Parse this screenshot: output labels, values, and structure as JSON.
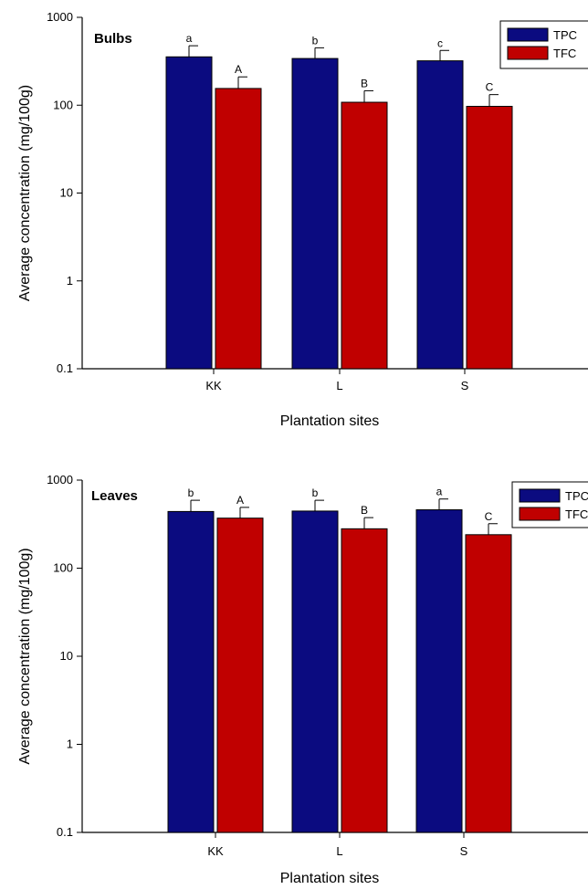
{
  "chart_data": [
    {
      "type": "bar",
      "title": "Bulbs",
      "xlabel": "Plantation sites",
      "ylabel": "Average concentration (mg/100g)",
      "yscale": "log",
      "ylim": [
        0.1,
        1000
      ],
      "yticks": [
        "0.1",
        "1",
        "10",
        "100",
        "1000"
      ],
      "categories": [
        "KK",
        "L",
        "S"
      ],
      "legend_position": "top-right",
      "series": [
        {
          "name": "TPC",
          "color": "#0b0b80",
          "values": [
            355,
            340,
            320
          ],
          "errors": [
            120,
            110,
            100
          ],
          "labels": [
            "a",
            "b",
            "c"
          ]
        },
        {
          "name": "TFC",
          "color": "#c00000",
          "values": [
            155,
            108,
            97
          ],
          "errors": [
            55,
            38,
            35
          ],
          "labels": [
            "A",
            "B",
            "C"
          ]
        }
      ]
    },
    {
      "type": "bar",
      "title": "Leaves",
      "xlabel": "Plantation sites",
      "ylabel": "Average concentration (mg/100g)",
      "yscale": "log",
      "ylim": [
        0.1,
        1000
      ],
      "yticks": [
        "0.1",
        "1",
        "10",
        "100",
        "1000"
      ],
      "categories": [
        "KK",
        "L",
        "S"
      ],
      "legend_position": "top-right",
      "series": [
        {
          "name": "TPC",
          "color": "#0b0b80",
          "values": [
            440,
            445,
            460
          ],
          "errors": [
            150,
            145,
            150
          ],
          "labels": [
            "b",
            "b",
            "a"
          ]
        },
        {
          "name": "TFC",
          "color": "#c00000",
          "values": [
            370,
            280,
            240
          ],
          "errors": [
            120,
            95,
            80
          ],
          "labels": [
            "A",
            "B",
            "C"
          ]
        }
      ]
    }
  ]
}
